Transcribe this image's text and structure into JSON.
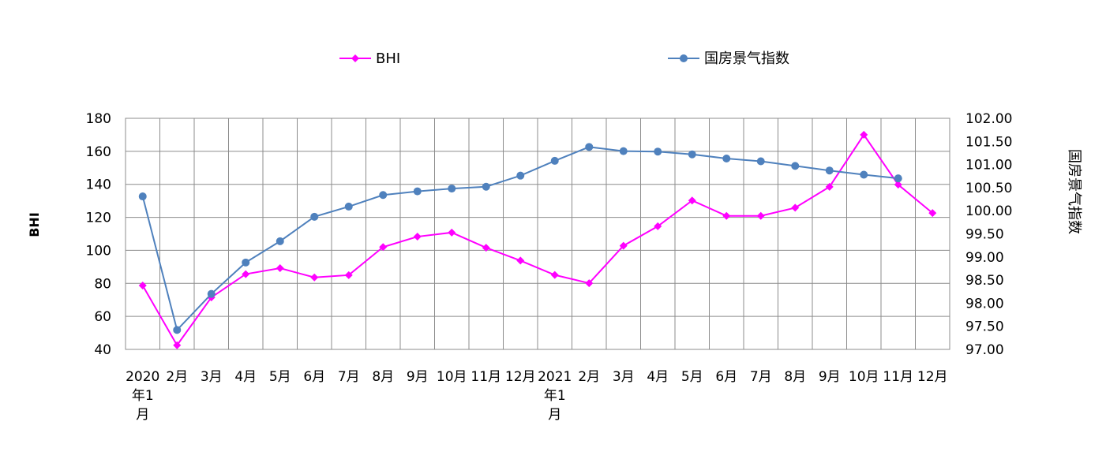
{
  "chart_data": {
    "type": "line",
    "categories": [
      "2020年1月",
      "2月",
      "3月",
      "4月",
      "5月",
      "6月",
      "7月",
      "8月",
      "9月",
      "10月",
      "11月",
      "12月",
      "2021年1月",
      "2月",
      "3月",
      "4月",
      "5月",
      "6月",
      "7月",
      "8月",
      "9月",
      "10月",
      "11月",
      "12月"
    ],
    "category_lines": [
      [
        "2020",
        "年1",
        "月"
      ],
      [
        "2月"
      ],
      [
        "3月"
      ],
      [
        "4月"
      ],
      [
        "5月"
      ],
      [
        "6月"
      ],
      [
        "7月"
      ],
      [
        "8月"
      ],
      [
        "9月"
      ],
      [
        "10月"
      ],
      [
        "11月"
      ],
      [
        "12月"
      ],
      [
        "2021",
        "年1",
        "月"
      ],
      [
        "2月"
      ],
      [
        "3月"
      ],
      [
        "4月"
      ],
      [
        "5月"
      ],
      [
        "6月"
      ],
      [
        "7月"
      ],
      [
        "8月"
      ],
      [
        "9月"
      ],
      [
        "10月"
      ],
      [
        "11月"
      ],
      [
        "12月"
      ]
    ],
    "series": [
      {
        "name": "BHI",
        "axis": "left",
        "color": "#FF00FF",
        "marker": "diamond",
        "values": [
          78.7,
          42.5,
          71.5,
          85.6,
          89.2,
          83.6,
          85.0,
          102.0,
          108.3,
          110.8,
          101.6,
          93.8,
          85.1,
          80.1,
          102.8,
          114.6,
          130.2,
          120.9,
          120.9,
          125.8,
          138.5,
          170.0,
          139.8,
          122.6
        ]
      },
      {
        "name": "国房景气指数",
        "axis": "right",
        "color": "#4F81BD",
        "marker": "circle",
        "values": [
          100.31,
          97.42,
          98.2,
          98.88,
          99.34,
          99.87,
          100.09,
          100.34,
          100.42,
          100.48,
          100.52,
          100.76,
          101.08,
          101.38,
          101.29,
          101.28,
          101.22,
          101.13,
          101.07,
          100.97,
          100.87,
          100.78,
          100.7,
          null
        ]
      }
    ],
    "left_axis": {
      "title": "BHI",
      "min": 40,
      "max": 180,
      "step": 20,
      "ticks": [
        "40",
        "60",
        "80",
        "100",
        "120",
        "140",
        "160",
        "180"
      ]
    },
    "right_axis": {
      "title": "国房景气指数",
      "min": 97.0,
      "max": 102.0,
      "step": 0.5,
      "ticks": [
        "97.00",
        "97.50",
        "98.00",
        "98.50",
        "99.00",
        "99.50",
        "100.00",
        "100.50",
        "101.00",
        "101.50",
        "102.00"
      ]
    },
    "grid": true,
    "legend_position": "top"
  }
}
